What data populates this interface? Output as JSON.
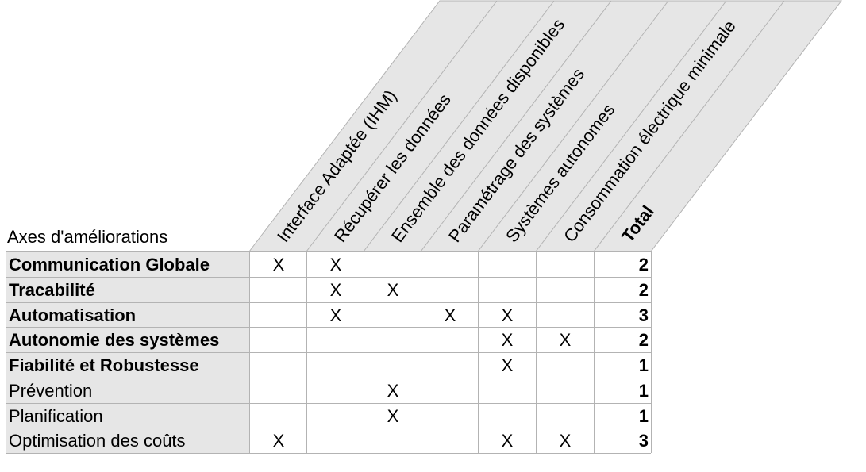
{
  "axes_label": "Axes d'améliorations",
  "columns": [
    {
      "label": "Interface Adaptée (IHM)"
    },
    {
      "label": "Récupérer les données"
    },
    {
      "label": "Ensemble des données disponibles"
    },
    {
      "label": "Paramétrage des systèmes"
    },
    {
      "label": "Systèmes autonomes"
    },
    {
      "label": "Consommation électrique minimale"
    }
  ],
  "total_label": "Total",
  "rows": [
    {
      "label": "Communication Globale",
      "bold": true,
      "marks": [
        "X",
        "X",
        "",
        "",
        "",
        ""
      ],
      "total": "2"
    },
    {
      "label": "Tracabilité",
      "bold": true,
      "marks": [
        "",
        "X",
        "X",
        "",
        "",
        ""
      ],
      "total": "2"
    },
    {
      "label": "Automatisation",
      "bold": true,
      "marks": [
        "",
        "X",
        "",
        "X",
        "X",
        ""
      ],
      "total": "3"
    },
    {
      "label": "Autonomie des systèmes",
      "bold": true,
      "marks": [
        "",
        "",
        "",
        "",
        "X",
        "X"
      ],
      "total": "2"
    },
    {
      "label": "Fiabilité et Robustesse",
      "bold": true,
      "marks": [
        "",
        "",
        "",
        "",
        "X",
        ""
      ],
      "total": "1"
    },
    {
      "label": "Prévention",
      "bold": false,
      "marks": [
        "",
        "",
        "X",
        "",
        "",
        ""
      ],
      "total": "1"
    },
    {
      "label": "Planification",
      "bold": false,
      "marks": [
        "",
        "",
        "X",
        "",
        "",
        ""
      ],
      "total": "1"
    },
    {
      "label": "Optimisation des coûts",
      "bold": false,
      "marks": [
        "X",
        "",
        "",
        "",
        "X",
        "X"
      ],
      "total": "3"
    }
  ],
  "colors": {
    "header_fill": "#e6e6e6",
    "grid_line": "#b3b3b3"
  }
}
